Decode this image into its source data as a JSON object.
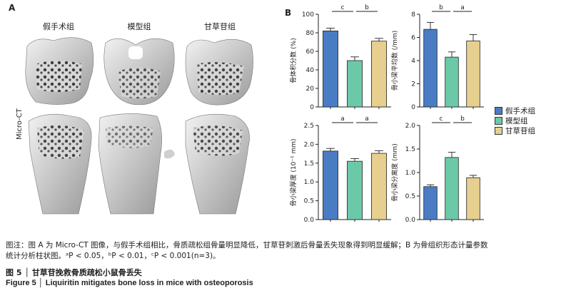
{
  "panel_a": {
    "letter": "A",
    "groups": [
      "假手术组",
      "模型组",
      "甘草苷组"
    ],
    "row_label": "Micro-CT"
  },
  "panel_b": {
    "letter": "B"
  },
  "legend": [
    {
      "label": "假手术组",
      "color": "#4a7cc4"
    },
    {
      "label": "模型组",
      "color": "#6cc9a8"
    },
    {
      "label": "甘草苷组",
      "color": "#e6cf8f"
    }
  ],
  "chart_data": [
    {
      "type": "bar",
      "ylabel": "骨体积分数 (%)",
      "categories": [
        "假手术组",
        "模型组",
        "甘草苷组"
      ],
      "values": [
        82,
        50,
        71
      ],
      "errors": [
        3,
        4,
        3
      ],
      "ylim": [
        0,
        100
      ],
      "yticks": [
        0,
        20,
        40,
        60,
        80,
        100
      ],
      "significance": [
        {
          "from": 0,
          "to": 1,
          "label": "c"
        },
        {
          "from": 1,
          "to": 2,
          "label": "b"
        }
      ]
    },
    {
      "type": "bar",
      "ylabel": "骨小梁平均数 (/mm)",
      "categories": [
        "假手术组",
        "模型组",
        "甘草苷组"
      ],
      "values": [
        6.7,
        4.3,
        5.7
      ],
      "errors": [
        0.6,
        0.45,
        0.55
      ],
      "ylim": [
        0,
        8
      ],
      "yticks": [
        0,
        2,
        4,
        6,
        8
      ],
      "significance": [
        {
          "from": 0,
          "to": 1,
          "label": "b"
        },
        {
          "from": 1,
          "to": 2,
          "label": "a"
        }
      ]
    },
    {
      "type": "bar",
      "ylabel": "骨小梁厚度 (10⁻¹ mm)",
      "categories": [
        "假手术组",
        "模型组",
        "甘草苷组"
      ],
      "values": [
        1.82,
        1.55,
        1.76
      ],
      "errors": [
        0.07,
        0.07,
        0.07
      ],
      "ylim": [
        0,
        2.5
      ],
      "yticks": [
        0.0,
        0.5,
        1.0,
        1.5,
        2.0,
        2.5
      ],
      "significance": [
        {
          "from": 0,
          "to": 1,
          "label": "a"
        },
        {
          "from": 1,
          "to": 2,
          "label": "a"
        }
      ]
    },
    {
      "type": "bar",
      "ylabel": "骨小梁分离度 (mm)",
      "categories": [
        "假手术组",
        "模型组",
        "甘草苷组"
      ],
      "values": [
        0.7,
        1.32,
        0.89
      ],
      "errors": [
        0.04,
        0.11,
        0.05
      ],
      "ylim": [
        0,
        2.0
      ],
      "yticks": [
        0.0,
        0.5,
        1.0,
        1.5,
        2.0
      ],
      "significance": [
        {
          "from": 0,
          "to": 1,
          "label": "c"
        },
        {
          "from": 1,
          "to": 2,
          "label": "b"
        }
      ]
    }
  ],
  "caption": {
    "note_line1": "图注：图 A 为 Micro-CT 图像，与假手术组相比，骨质疏松组骨量明显降低，甘草苷刺激后骨量丢失现象得到明显缓解；B 为骨组织形态计量参数",
    "note_line2": "统计分析柱状图。ᵃP < 0.05，ᵇP < 0.01，ᶜP < 0.001(n=3)。",
    "figure_cn": "图 5 │ 甘草苷挽救骨质疏松小鼠骨丢失",
    "figure_en": "Figure 5 │ Liquiritin mitigates bone loss in mice with osteoporosis"
  }
}
